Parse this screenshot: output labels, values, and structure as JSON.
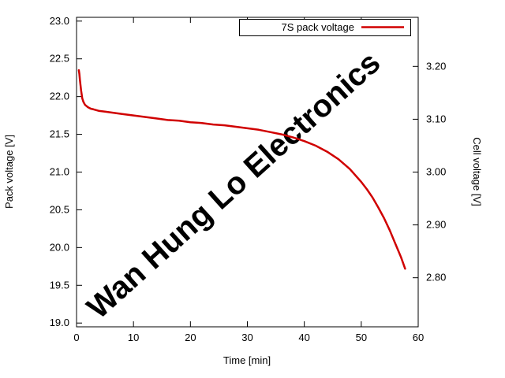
{
  "chart_data": {
    "type": "line",
    "title": "",
    "xlabel": "Time [min]",
    "ylabel": "Pack voltage [V]",
    "y2label": "Cell voltage [V]",
    "xlim": [
      0,
      60
    ],
    "ylim": [
      18.95,
      23.05
    ],
    "grid": false,
    "legend_position": "top-right-inside",
    "watermark": "Wan Hung Lo Electronics",
    "colors": {
      "series": "#d00000",
      "watermark": "#e2e2e2",
      "axis": "#000000"
    },
    "x_ticks": [
      {
        "value": 0,
        "label": "0"
      },
      {
        "value": 10,
        "label": "10"
      },
      {
        "value": 20,
        "label": "20"
      },
      {
        "value": 30,
        "label": "30"
      },
      {
        "value": 40,
        "label": "40"
      },
      {
        "value": 50,
        "label": "50"
      },
      {
        "value": 60,
        "label": "60"
      }
    ],
    "y_left_ticks": [
      {
        "value": 19.0,
        "label": "19.0"
      },
      {
        "value": 19.5,
        "label": "19.5"
      },
      {
        "value": 20.0,
        "label": "20.0"
      },
      {
        "value": 20.5,
        "label": "20.5"
      },
      {
        "value": 21.0,
        "label": "21.0"
      },
      {
        "value": 21.5,
        "label": "21.5"
      },
      {
        "value": 22.0,
        "label": "22.0"
      },
      {
        "value": 22.5,
        "label": "22.5"
      },
      {
        "value": 23.0,
        "label": "23.0"
      }
    ],
    "y_right_ticks": [
      {
        "cell_value": 2.8,
        "label": "2.80"
      },
      {
        "cell_value": 2.9,
        "label": "2.90"
      },
      {
        "cell_value": 3.0,
        "label": "3.00"
      },
      {
        "cell_value": 3.1,
        "label": "3.10"
      },
      {
        "cell_value": 3.2,
        "label": "3.20"
      }
    ],
    "cells_in_series": 7,
    "series": [
      {
        "name": "7S pack voltage",
        "points": [
          [
            0.4,
            22.35
          ],
          [
            0.5,
            22.3
          ],
          [
            0.6,
            22.22
          ],
          [
            0.8,
            22.08
          ],
          [
            1.0,
            21.98
          ],
          [
            1.2,
            21.93
          ],
          [
            1.5,
            21.89
          ],
          [
            2.0,
            21.86
          ],
          [
            2.5,
            21.84
          ],
          [
            3.0,
            21.83
          ],
          [
            4,
            21.81
          ],
          [
            5,
            21.8
          ],
          [
            6,
            21.79
          ],
          [
            8,
            21.77
          ],
          [
            10,
            21.75
          ],
          [
            12,
            21.73
          ],
          [
            14,
            21.71
          ],
          [
            16,
            21.69
          ],
          [
            18,
            21.68
          ],
          [
            20,
            21.66
          ],
          [
            22,
            21.65
          ],
          [
            24,
            21.63
          ],
          [
            26,
            21.62
          ],
          [
            28,
            21.6
          ],
          [
            30,
            21.58
          ],
          [
            32,
            21.56
          ],
          [
            34,
            21.53
          ],
          [
            36,
            21.5
          ],
          [
            38,
            21.46
          ],
          [
            40,
            21.41
          ],
          [
            42,
            21.35
          ],
          [
            44,
            21.27
          ],
          [
            46,
            21.17
          ],
          [
            48,
            21.04
          ],
          [
            50,
            20.87
          ],
          [
            51,
            20.77
          ],
          [
            52,
            20.66
          ],
          [
            53,
            20.53
          ],
          [
            54,
            20.39
          ],
          [
            55,
            20.23
          ],
          [
            56,
            20.05
          ],
          [
            57,
            19.87
          ],
          [
            57.7,
            19.72
          ]
        ]
      }
    ]
  }
}
